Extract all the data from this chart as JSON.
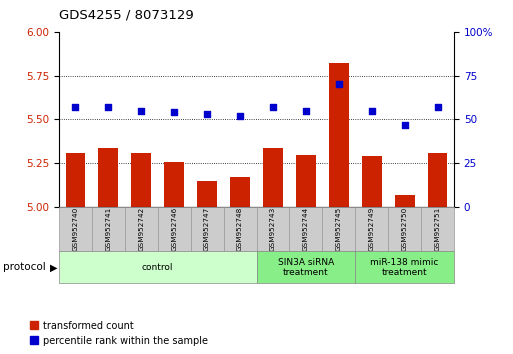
{
  "title": "GDS4255 / 8073129",
  "samples": [
    "GSM952740",
    "GSM952741",
    "GSM952742",
    "GSM952746",
    "GSM952747",
    "GSM952748",
    "GSM952743",
    "GSM952744",
    "GSM952745",
    "GSM952749",
    "GSM952750",
    "GSM952751"
  ],
  "transformed_count": [
    5.31,
    5.34,
    5.31,
    5.26,
    5.15,
    5.17,
    5.34,
    5.3,
    5.82,
    5.29,
    5.07,
    5.31
  ],
  "percentile_rank": [
    57,
    57,
    55,
    54,
    53,
    52,
    57,
    55,
    70,
    55,
    47,
    57
  ],
  "ylim_left": [
    5.0,
    6.0
  ],
  "ylim_right": [
    0,
    100
  ],
  "yticks_left": [
    5.0,
    5.25,
    5.5,
    5.75,
    6.0
  ],
  "yticks_right": [
    0,
    25,
    50,
    75,
    100
  ],
  "bar_color": "#cc2200",
  "dot_color": "#0000cc",
  "groups": [
    {
      "label": "control",
      "start": 0,
      "end": 6,
      "color": "#ccffcc"
    },
    {
      "label": "SIN3A siRNA\ntreatment",
      "start": 6,
      "end": 9,
      "color": "#88ee88"
    },
    {
      "label": "miR-138 mimic\ntreatment",
      "start": 9,
      "end": 12,
      "color": "#88ee88"
    }
  ],
  "legend_red_label": "transformed count",
  "legend_blue_label": "percentile rank within the sample",
  "protocol_label": "protocol"
}
